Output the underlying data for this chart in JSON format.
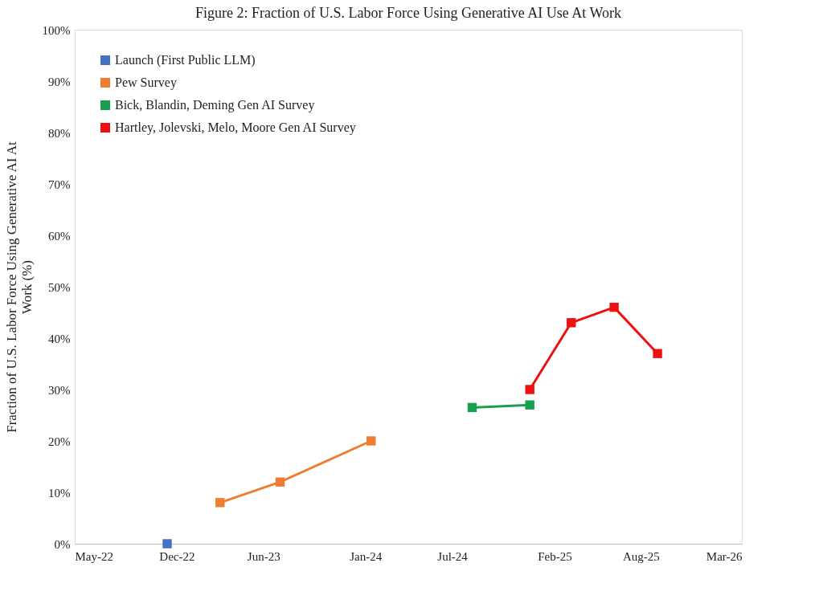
{
  "chart_data": {
    "type": "line",
    "title": "Figure 2: Fraction of U.S. Labor Force Using Generative AI Use At Work",
    "ylabel": "Fraction of U.S. Labor Force Using Generative AI At Work (%)",
    "series": [
      {
        "name": "Launch (First Public LLM)",
        "color": "#4472c4",
        "x": [
          "2022-11-11"
        ],
        "values": [
          0
        ]
      },
      {
        "name": "Pew Survey",
        "color": "#ed7d31",
        "x": [
          "2023-03-02",
          "2023-07-06",
          "2024-01-13"
        ],
        "values": [
          8,
          12,
          20
        ]
      },
      {
        "name": "Bick, Blandin, Deming Gen AI Survey",
        "color": "#16a050",
        "x": [
          "2024-08-12",
          "2024-12-11"
        ],
        "values": [
          26.5,
          27
        ]
      },
      {
        "name": "Hartley, Jolevski, Melo, Moore Gen AI Survey",
        "color": "#ee1111",
        "x": [
          "2024-12-11",
          "2025-03-08",
          "2025-06-06",
          "2025-09-05"
        ],
        "values": [
          30,
          43,
          46,
          37
        ]
      }
    ],
    "xlim": [
      "2022-05-01",
      "2026-03-01"
    ],
    "xticks": [
      {
        "value": "2022-05-01",
        "label": "May-22"
      },
      {
        "value": "2022-12-01",
        "label": "Dec-22"
      },
      {
        "value": "2023-06-01",
        "label": "Jun-23"
      },
      {
        "value": "2024-01-01",
        "label": "Jan-24"
      },
      {
        "value": "2024-07-01",
        "label": "Jul-24"
      },
      {
        "value": "2025-02-01",
        "label": "Feb-25"
      },
      {
        "value": "2025-08-01",
        "label": "Aug-25"
      },
      {
        "value": "2026-03-01",
        "label": "Mar-26"
      }
    ],
    "ylim": [
      0,
      100
    ],
    "yticks": [
      {
        "value": 0,
        "label": "0%"
      },
      {
        "value": 10,
        "label": "10%"
      },
      {
        "value": 20,
        "label": "20%"
      },
      {
        "value": 30,
        "label": "30%"
      },
      {
        "value": 40,
        "label": "40%"
      },
      {
        "value": 50,
        "label": "50%"
      },
      {
        "value": 60,
        "label": "60%"
      },
      {
        "value": 70,
        "label": "70%"
      },
      {
        "value": 80,
        "label": "80%"
      },
      {
        "value": 90,
        "label": "90%"
      },
      {
        "value": 100,
        "label": "100%"
      }
    ],
    "legend": "top left",
    "marker": "square",
    "line_style": "solid",
    "grid": false
  }
}
